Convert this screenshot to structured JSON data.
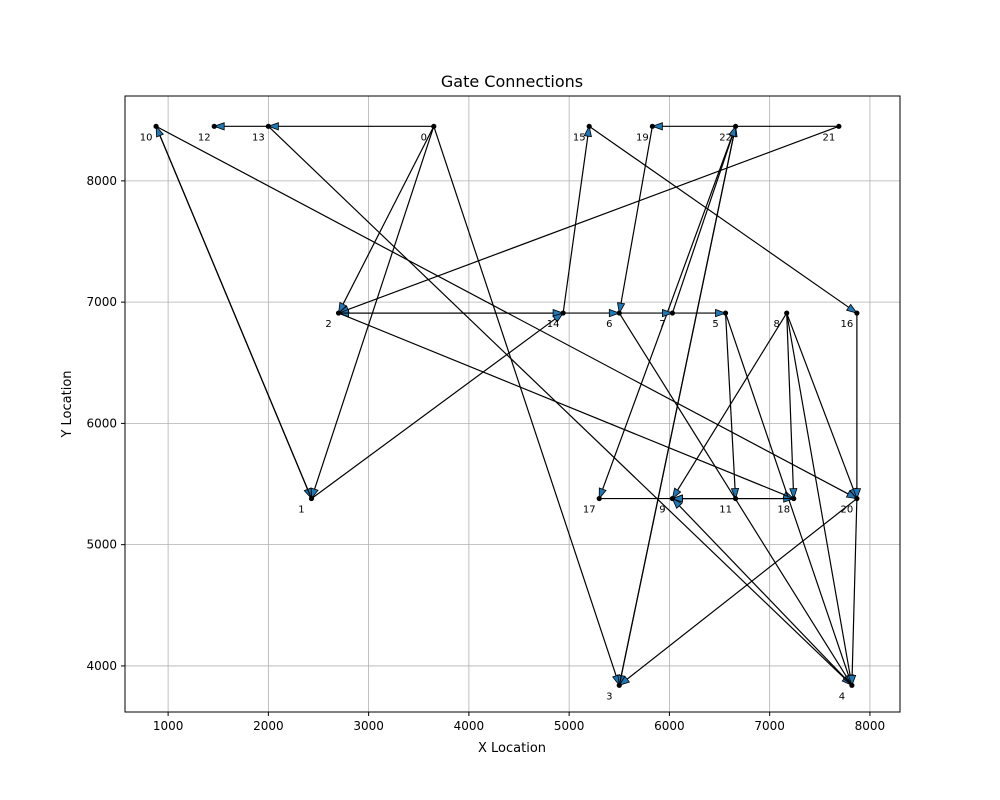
{
  "chart_data": {
    "type": "scatter",
    "title": "Gate Connections",
    "xlabel": "X Location",
    "ylabel": "Y Location",
    "xlim": [
      570,
      8300
    ],
    "ylim": [
      3620,
      8700
    ],
    "xticks": [
      1000,
      2000,
      3000,
      4000,
      5000,
      6000,
      7000,
      8000
    ],
    "yticks": [
      4000,
      5000,
      6000,
      7000,
      8000
    ],
    "grid": true,
    "nodes": [
      {
        "id": "0",
        "x": 3650,
        "y": 8450
      },
      {
        "id": "1",
        "x": 2430,
        "y": 5380
      },
      {
        "id": "2",
        "x": 2700,
        "y": 6910
      },
      {
        "id": "3",
        "x": 5500,
        "y": 3840
      },
      {
        "id": "4",
        "x": 7820,
        "y": 3840
      },
      {
        "id": "5",
        "x": 6560,
        "y": 6910
      },
      {
        "id": "6",
        "x": 5500,
        "y": 6910
      },
      {
        "id": "7",
        "x": 6030,
        "y": 6910
      },
      {
        "id": "8",
        "x": 7170,
        "y": 6910
      },
      {
        "id": "9",
        "x": 6030,
        "y": 5380
      },
      {
        "id": "10",
        "x": 880,
        "y": 8450
      },
      {
        "id": "11",
        "x": 6660,
        "y": 5380
      },
      {
        "id": "12",
        "x": 1460,
        "y": 8450
      },
      {
        "id": "13",
        "x": 2000,
        "y": 8450
      },
      {
        "id": "14",
        "x": 4940,
        "y": 6910
      },
      {
        "id": "15",
        "x": 5200,
        "y": 8450
      },
      {
        "id": "16",
        "x": 7870,
        "y": 6910
      },
      {
        "id": "17",
        "x": 5300,
        "y": 5380
      },
      {
        "id": "18",
        "x": 7240,
        "y": 5380
      },
      {
        "id": "19",
        "x": 5830,
        "y": 8450
      },
      {
        "id": "20",
        "x": 7870,
        "y": 5380
      },
      {
        "id": "21",
        "x": 7690,
        "y": 8450
      },
      {
        "id": "22",
        "x": 6660,
        "y": 8450
      }
    ],
    "edges": [
      [
        "0",
        "13"
      ],
      [
        "13",
        "12"
      ],
      [
        "0",
        "2"
      ],
      [
        "0",
        "1"
      ],
      [
        "0",
        "3"
      ],
      [
        "10",
        "1"
      ],
      [
        "1",
        "10"
      ],
      [
        "10",
        "20"
      ],
      [
        "13",
        "4"
      ],
      [
        "21",
        "19"
      ],
      [
        "21",
        "2"
      ],
      [
        "22",
        "17"
      ],
      [
        "22",
        "3"
      ],
      [
        "3",
        "22"
      ],
      [
        "19",
        "6"
      ],
      [
        "14",
        "2"
      ],
      [
        "2",
        "14"
      ],
      [
        "14",
        "15"
      ],
      [
        "15",
        "16"
      ],
      [
        "1",
        "14"
      ],
      [
        "2",
        "18"
      ],
      [
        "14",
        "6"
      ],
      [
        "6",
        "7"
      ],
      [
        "7",
        "5"
      ],
      [
        "7",
        "22"
      ],
      [
        "6",
        "4"
      ],
      [
        "5",
        "11"
      ],
      [
        "5",
        "4"
      ],
      [
        "8",
        "9"
      ],
      [
        "8",
        "18"
      ],
      [
        "8",
        "20"
      ],
      [
        "8",
        "4"
      ],
      [
        "16",
        "20"
      ],
      [
        "20",
        "4"
      ],
      [
        "20",
        "3"
      ],
      [
        "17",
        "18"
      ],
      [
        "18",
        "9"
      ],
      [
        "4",
        "9"
      ],
      [
        "11",
        "9"
      ]
    ]
  }
}
